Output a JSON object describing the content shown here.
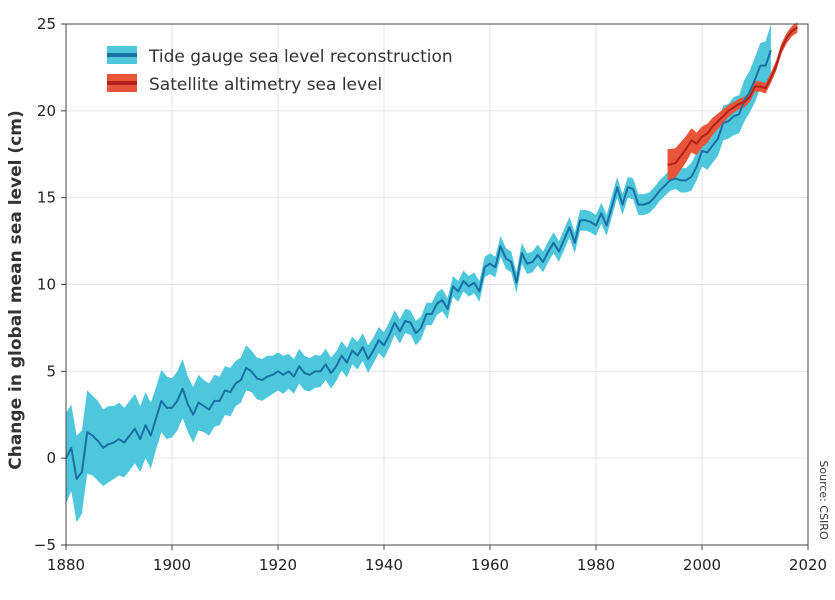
{
  "chart_data": {
    "type": "line",
    "title": "",
    "xlabel": "",
    "ylabel": "Change in global mean sea level (cm)",
    "xlim": [
      1880,
      2020
    ],
    "ylim": [
      -5,
      25
    ],
    "x_ticks": [
      1880,
      1900,
      1920,
      1940,
      1960,
      1980,
      2000,
      2020
    ],
    "y_ticks": [
      -5,
      0,
      5,
      10,
      15,
      20,
      25
    ],
    "grid": true,
    "legend_position": "top-left",
    "source": "Source: CSIRO",
    "series": [
      {
        "name": "Tide gauge sea level reconstruction",
        "line_color": "#1a6fa3",
        "band_color": "#4ec7dc",
        "x": [
          1880,
          1881,
          1882,
          1883,
          1884,
          1885,
          1886,
          1887,
          1888,
          1889,
          1890,
          1891,
          1892,
          1893,
          1894,
          1895,
          1896,
          1897,
          1898,
          1899,
          1900,
          1901,
          1902,
          1903,
          1904,
          1905,
          1906,
          1907,
          1908,
          1909,
          1910,
          1911,
          1912,
          1913,
          1914,
          1915,
          1916,
          1917,
          1918,
          1919,
          1920,
          1921,
          1922,
          1923,
          1924,
          1925,
          1926,
          1927,
          1928,
          1929,
          1930,
          1931,
          1932,
          1933,
          1934,
          1935,
          1936,
          1937,
          1938,
          1939,
          1940,
          1941,
          1942,
          1943,
          1944,
          1945,
          1946,
          1947,
          1948,
          1949,
          1950,
          1951,
          1952,
          1953,
          1954,
          1955,
          1956,
          1957,
          1958,
          1959,
          1960,
          1961,
          1962,
          1963,
          1964,
          1965,
          1966,
          1967,
          1968,
          1969,
          1970,
          1971,
          1972,
          1973,
          1974,
          1975,
          1976,
          1977,
          1978,
          1979,
          1980,
          1981,
          1982,
          1983,
          1984,
          1985,
          1986,
          1987,
          1988,
          1989,
          1990,
          1991,
          1992,
          1993,
          1994,
          1995,
          1996,
          1997,
          1998,
          1999,
          2000,
          2001,
          2002,
          2003,
          2004,
          2005,
          2006,
          2007,
          2008,
          2009,
          2010,
          2011,
          2012,
          2013
        ],
        "values": [
          0.0,
          0.6,
          -1.2,
          -0.8,
          1.5,
          1.3,
          1.0,
          0.6,
          0.8,
          0.9,
          1.1,
          0.9,
          1.3,
          1.7,
          1.1,
          1.9,
          1.3,
          2.3,
          3.3,
          2.9,
          2.9,
          3.3,
          4.0,
          3.1,
          2.5,
          3.2,
          3.0,
          2.8,
          3.3,
          3.3,
          3.9,
          3.8,
          4.3,
          4.5,
          5.2,
          5.0,
          4.6,
          4.5,
          4.7,
          4.8,
          5.0,
          4.8,
          5.0,
          4.7,
          5.3,
          4.9,
          4.8,
          5.0,
          5.0,
          5.4,
          4.9,
          5.3,
          5.9,
          5.5,
          6.2,
          5.9,
          6.4,
          5.7,
          6.2,
          6.8,
          6.5,
          7.1,
          7.8,
          7.3,
          7.9,
          7.8,
          7.2,
          7.5,
          8.3,
          8.3,
          8.9,
          9.1,
          8.6,
          9.9,
          9.6,
          10.2,
          9.9,
          10.1,
          9.6,
          11.0,
          11.2,
          11.0,
          12.2,
          11.5,
          11.3,
          10.1,
          11.8,
          11.2,
          11.3,
          11.7,
          11.3,
          11.9,
          12.4,
          11.9,
          12.6,
          13.3,
          12.4,
          13.7,
          13.7,
          13.6,
          13.4,
          14.1,
          13.4,
          14.5,
          15.6,
          14.6,
          15.6,
          15.5,
          14.6,
          14.6,
          14.7,
          15.0,
          15.4,
          15.7,
          16.0,
          16.1,
          16.0,
          16.0,
          16.2,
          16.8,
          17.7,
          17.6,
          18.0,
          18.4,
          19.3,
          19.4,
          19.7,
          19.8,
          20.6,
          21.1,
          21.8,
          22.6,
          22.6,
          23.5
        ],
        "band_half_width": [
          2.6,
          2.5,
          2.5,
          2.4,
          2.4,
          2.3,
          2.3,
          2.2,
          2.2,
          2.1,
          2.1,
          2.0,
          2.0,
          2.0,
          1.9,
          1.9,
          1.9,
          1.8,
          1.8,
          1.8,
          1.7,
          1.7,
          1.7,
          1.6,
          1.6,
          1.6,
          1.5,
          1.5,
          1.5,
          1.4,
          1.4,
          1.4,
          1.3,
          1.3,
          1.3,
          1.2,
          1.2,
          1.2,
          1.2,
          1.1,
          1.1,
          1.1,
          1.0,
          1.0,
          1.0,
          1.0,
          0.95,
          0.95,
          0.9,
          0.9,
          0.9,
          0.85,
          0.85,
          0.85,
          0.8,
          0.8,
          0.8,
          0.8,
          0.75,
          0.75,
          0.75,
          0.75,
          0.7,
          0.7,
          0.7,
          0.7,
          0.7,
          0.65,
          0.65,
          0.65,
          0.65,
          0.65,
          0.6,
          0.6,
          0.6,
          0.6,
          0.6,
          0.6,
          0.6,
          0.6,
          0.6,
          0.6,
          0.6,
          0.6,
          0.6,
          0.6,
          0.6,
          0.6,
          0.6,
          0.6,
          0.6,
          0.6,
          0.6,
          0.6,
          0.6,
          0.6,
          0.6,
          0.6,
          0.6,
          0.6,
          0.6,
          0.6,
          0.6,
          0.6,
          0.6,
          0.6,
          0.6,
          0.6,
          0.6,
          0.6,
          0.6,
          0.6,
          0.6,
          0.6,
          0.6,
          0.6,
          0.7,
          0.7,
          0.8,
          0.8,
          0.9,
          1.0,
          1.0,
          1.0,
          1.0,
          1.0,
          1.1,
          1.1,
          1.2,
          1.2,
          1.3,
          1.3,
          1.4,
          1.5
        ]
      },
      {
        "name": "Satellite altimetry sea level",
        "line_color": "#b3201a",
        "band_color": "#e8553a",
        "x": [
          1993.5,
          1994,
          1995,
          1996,
          1997,
          1998,
          1999,
          2000,
          2001,
          2002,
          2003,
          2004,
          2005,
          2006,
          2007,
          2008,
          2009,
          2010,
          2011,
          2012,
          2013,
          2014,
          2015,
          2016,
          2017,
          2018
        ],
        "values": [
          16.9,
          16.9,
          17.0,
          17.4,
          17.8,
          18.3,
          18.1,
          18.5,
          18.7,
          19.1,
          19.4,
          19.7,
          20.0,
          20.2,
          20.4,
          20.5,
          20.8,
          21.4,
          21.4,
          21.3,
          21.9,
          22.6,
          23.6,
          24.2,
          24.6,
          24.8
        ],
        "band_half_width": [
          0.9,
          0.9,
          0.85,
          0.8,
          0.75,
          0.7,
          0.65,
          0.6,
          0.55,
          0.5,
          0.45,
          0.4,
          0.35,
          0.3,
          0.3,
          0.3,
          0.3,
          0.3,
          0.3,
          0.3,
          0.3,
          0.3,
          0.3,
          0.3,
          0.3,
          0.3
        ]
      }
    ]
  }
}
